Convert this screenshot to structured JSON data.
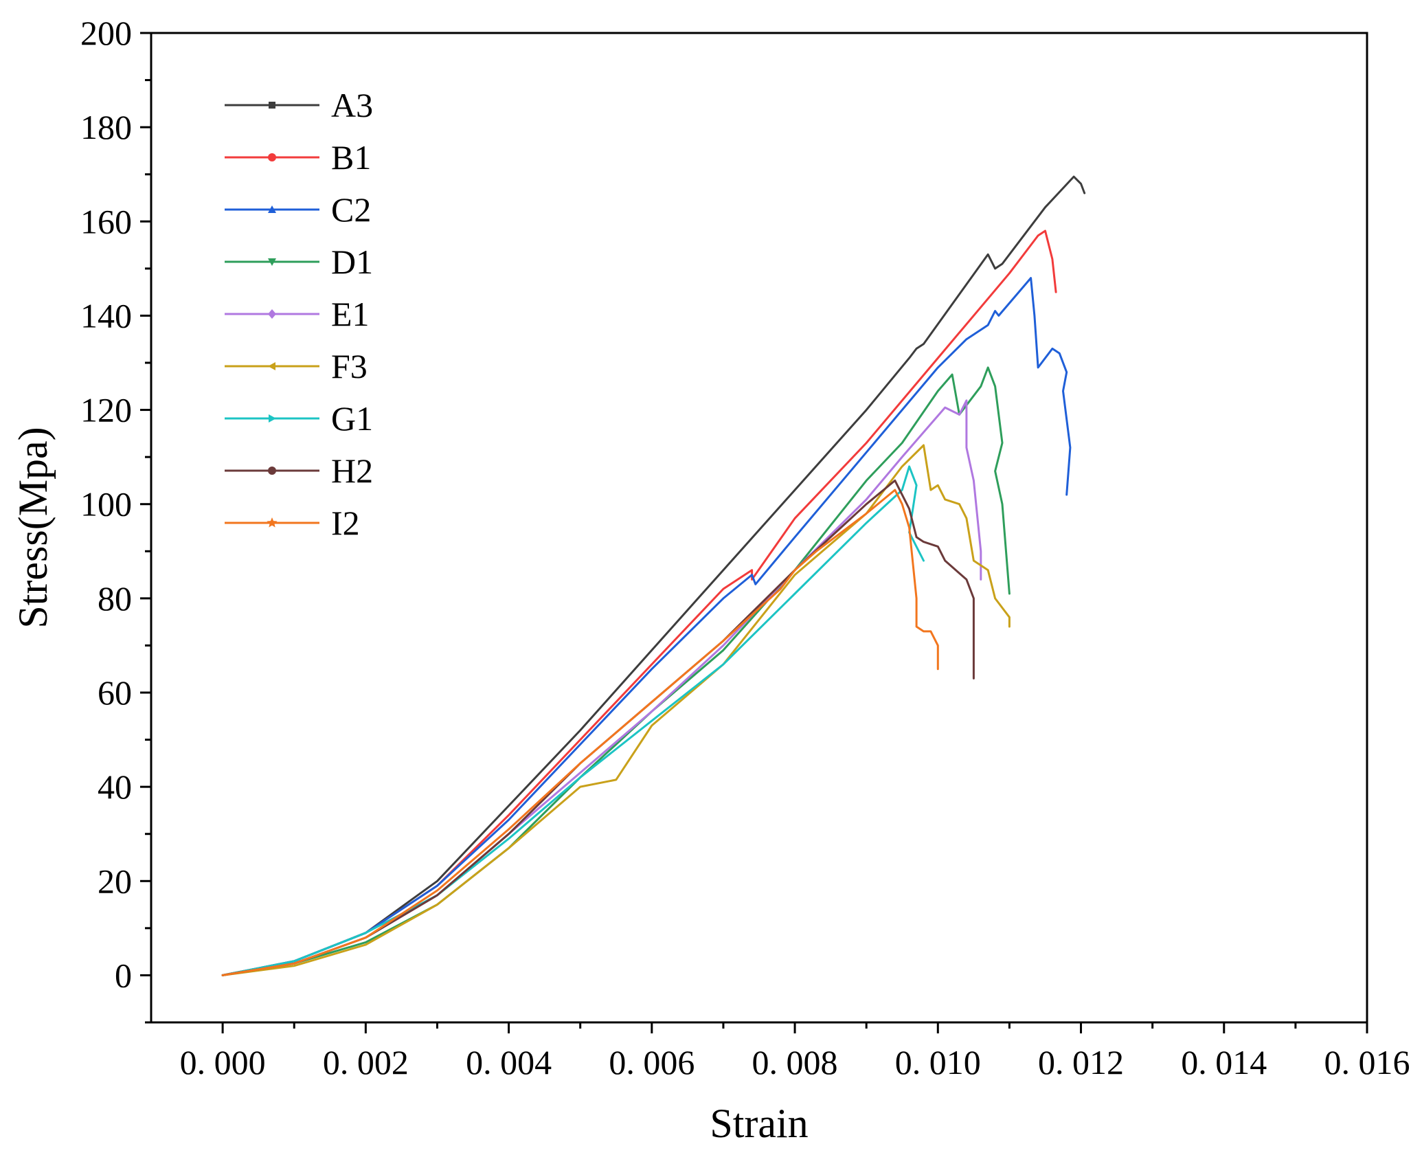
{
  "chart_data": {
    "type": "line",
    "title": "",
    "xlabel": "Strain",
    "ylabel": "Stress(Mpa)",
    "xlim": [
      -0.001,
      0.016
    ],
    "ylim": [
      -10,
      200
    ],
    "x_ticks": [
      0.0,
      0.002,
      0.004,
      0.006,
      0.008,
      0.01,
      0.012,
      0.014,
      0.016
    ],
    "x_tick_labels": [
      "0. 000",
      "0. 002",
      "0. 004",
      "0. 006",
      "0. 008",
      "0. 010",
      "0. 012",
      "0. 014",
      "0. 016"
    ],
    "y_ticks": [
      0,
      20,
      40,
      60,
      80,
      100,
      120,
      140,
      160,
      180,
      200
    ],
    "y_tick_labels": [
      "0",
      "20",
      "40",
      "60",
      "80",
      "100",
      "120",
      "140",
      "160",
      "180",
      "200"
    ],
    "legend_position": "top-left",
    "series": [
      {
        "name": "A3",
        "color": "#3d3d3d",
        "marker": "square",
        "points": [
          [
            0,
            0
          ],
          [
            0.001,
            3
          ],
          [
            0.002,
            9
          ],
          [
            0.003,
            20
          ],
          [
            0.004,
            36
          ],
          [
            0.005,
            52
          ],
          [
            0.006,
            69
          ],
          [
            0.007,
            86
          ],
          [
            0.008,
            103
          ],
          [
            0.009,
            120
          ],
          [
            0.0096,
            131
          ],
          [
            0.0097,
            133
          ],
          [
            0.0098,
            134
          ],
          [
            0.0107,
            153
          ],
          [
            0.0108,
            150
          ],
          [
            0.0109,
            151
          ],
          [
            0.0115,
            163
          ],
          [
            0.0119,
            169.5
          ],
          [
            0.012,
            168
          ],
          [
            0.01205,
            166
          ]
        ]
      },
      {
        "name": "B1",
        "color": "#f23b3b",
        "marker": "circle",
        "points": [
          [
            0,
            0
          ],
          [
            0.001,
            3
          ],
          [
            0.002,
            9
          ],
          [
            0.003,
            19
          ],
          [
            0.004,
            34
          ],
          [
            0.005,
            50
          ],
          [
            0.006,
            66
          ],
          [
            0.007,
            82
          ],
          [
            0.0074,
            86
          ],
          [
            0.0074,
            84
          ],
          [
            0.008,
            97
          ],
          [
            0.009,
            113
          ],
          [
            0.01,
            131
          ],
          [
            0.011,
            149
          ],
          [
            0.0114,
            157
          ],
          [
            0.0115,
            158
          ],
          [
            0.0116,
            152
          ],
          [
            0.01165,
            145
          ]
        ]
      },
      {
        "name": "C2",
        "color": "#1f5fd8",
        "marker": "triangle-up",
        "points": [
          [
            0,
            0
          ],
          [
            0.001,
            3
          ],
          [
            0.002,
            9
          ],
          [
            0.003,
            19
          ],
          [
            0.004,
            33
          ],
          [
            0.005,
            49
          ],
          [
            0.006,
            65
          ],
          [
            0.007,
            80
          ],
          [
            0.0074,
            85
          ],
          [
            0.00745,
            83
          ],
          [
            0.008,
            93
          ],
          [
            0.009,
            111
          ],
          [
            0.01,
            129
          ],
          [
            0.0104,
            135
          ],
          [
            0.0107,
            138
          ],
          [
            0.0108,
            141
          ],
          [
            0.01085,
            140
          ],
          [
            0.0113,
            148
          ],
          [
            0.01135,
            140
          ],
          [
            0.0114,
            129
          ],
          [
            0.0116,
            133
          ],
          [
            0.0117,
            132
          ],
          [
            0.0118,
            128
          ],
          [
            0.01175,
            124
          ],
          [
            0.01185,
            112
          ],
          [
            0.0118,
            102
          ]
        ]
      },
      {
        "name": "D1",
        "color": "#2e9e5b",
        "marker": "triangle-down",
        "points": [
          [
            0,
            0
          ],
          [
            0.001,
            2.5
          ],
          [
            0.002,
            7
          ],
          [
            0.003,
            15
          ],
          [
            0.004,
            27
          ],
          [
            0.005,
            42
          ],
          [
            0.006,
            56
          ],
          [
            0.007,
            69
          ],
          [
            0.008,
            86
          ],
          [
            0.009,
            105
          ],
          [
            0.0095,
            113
          ],
          [
            0.01,
            124
          ],
          [
            0.0102,
            127.5
          ],
          [
            0.0103,
            119
          ],
          [
            0.0106,
            125
          ],
          [
            0.0107,
            129
          ],
          [
            0.0108,
            125
          ],
          [
            0.0109,
            113
          ],
          [
            0.0108,
            107
          ],
          [
            0.0109,
            100
          ],
          [
            0.011,
            81
          ]
        ]
      },
      {
        "name": "E1",
        "color": "#b078e0",
        "marker": "diamond",
        "points": [
          [
            0,
            0
          ],
          [
            0.001,
            2.5
          ],
          [
            0.002,
            8
          ],
          [
            0.003,
            17
          ],
          [
            0.004,
            30
          ],
          [
            0.005,
            43
          ],
          [
            0.006,
            56
          ],
          [
            0.007,
            70
          ],
          [
            0.008,
            86
          ],
          [
            0.009,
            101
          ],
          [
            0.0095,
            110
          ],
          [
            0.0101,
            120.5
          ],
          [
            0.0103,
            119
          ],
          [
            0.0104,
            122
          ],
          [
            0.0104,
            112
          ],
          [
            0.0105,
            105
          ],
          [
            0.0106,
            90
          ],
          [
            0.0106,
            84
          ]
        ]
      },
      {
        "name": "F3",
        "color": "#c9a11a",
        "marker": "triangle-left",
        "points": [
          [
            0,
            0
          ],
          [
            0.001,
            2
          ],
          [
            0.002,
            6.5
          ],
          [
            0.003,
            15
          ],
          [
            0.004,
            27
          ],
          [
            0.005,
            40
          ],
          [
            0.0055,
            41.5
          ],
          [
            0.006,
            53
          ],
          [
            0.007,
            66
          ],
          [
            0.008,
            85
          ],
          [
            0.009,
            98
          ],
          [
            0.0095,
            108
          ],
          [
            0.0098,
            112.5
          ],
          [
            0.0099,
            103
          ],
          [
            0.01,
            104
          ],
          [
            0.0101,
            101
          ],
          [
            0.0103,
            100
          ],
          [
            0.0104,
            97
          ],
          [
            0.0105,
            88
          ],
          [
            0.0107,
            86
          ],
          [
            0.0108,
            80
          ],
          [
            0.011,
            76
          ],
          [
            0.011,
            74
          ]
        ]
      },
      {
        "name": "G1",
        "color": "#1cc4c4",
        "marker": "triangle-right",
        "points": [
          [
            0,
            0
          ],
          [
            0.001,
            3
          ],
          [
            0.002,
            9
          ],
          [
            0.003,
            17
          ],
          [
            0.004,
            29
          ],
          [
            0.005,
            42
          ],
          [
            0.006,
            54
          ],
          [
            0.007,
            66
          ],
          [
            0.008,
            81
          ],
          [
            0.009,
            96
          ],
          [
            0.0095,
            103
          ],
          [
            0.0096,
            108
          ],
          [
            0.0097,
            104
          ],
          [
            0.0096,
            94
          ],
          [
            0.0098,
            88
          ]
        ]
      },
      {
        "name": "H2",
        "color": "#6b3a3a",
        "marker": "circle",
        "points": [
          [
            0,
            0
          ],
          [
            0.001,
            2.5
          ],
          [
            0.002,
            8
          ],
          [
            0.003,
            17
          ],
          [
            0.004,
            30
          ],
          [
            0.005,
            45
          ],
          [
            0.006,
            58
          ],
          [
            0.007,
            71
          ],
          [
            0.008,
            86
          ],
          [
            0.009,
            100
          ],
          [
            0.0094,
            105
          ],
          [
            0.0096,
            99
          ],
          [
            0.0097,
            93
          ],
          [
            0.0098,
            92
          ],
          [
            0.01,
            91
          ],
          [
            0.0101,
            88
          ],
          [
            0.0104,
            84
          ],
          [
            0.0105,
            80
          ],
          [
            0.0105,
            63
          ]
        ]
      },
      {
        "name": "I2",
        "color": "#f2761e",
        "marker": "star",
        "points": [
          [
            0,
            0
          ],
          [
            0.001,
            2.5
          ],
          [
            0.002,
            8
          ],
          [
            0.003,
            18
          ],
          [
            0.004,
            31
          ],
          [
            0.005,
            45
          ],
          [
            0.006,
            58
          ],
          [
            0.007,
            71
          ],
          [
            0.0078,
            82
          ],
          [
            0.008,
            86
          ],
          [
            0.0083,
            90
          ],
          [
            0.009,
            98
          ],
          [
            0.0094,
            103
          ],
          [
            0.0095,
            100
          ],
          [
            0.0096,
            95
          ],
          [
            0.0097,
            80
          ],
          [
            0.0097,
            74
          ],
          [
            0.0098,
            73
          ],
          [
            0.0099,
            73
          ],
          [
            0.01,
            70
          ],
          [
            0.01,
            65
          ]
        ]
      }
    ]
  }
}
